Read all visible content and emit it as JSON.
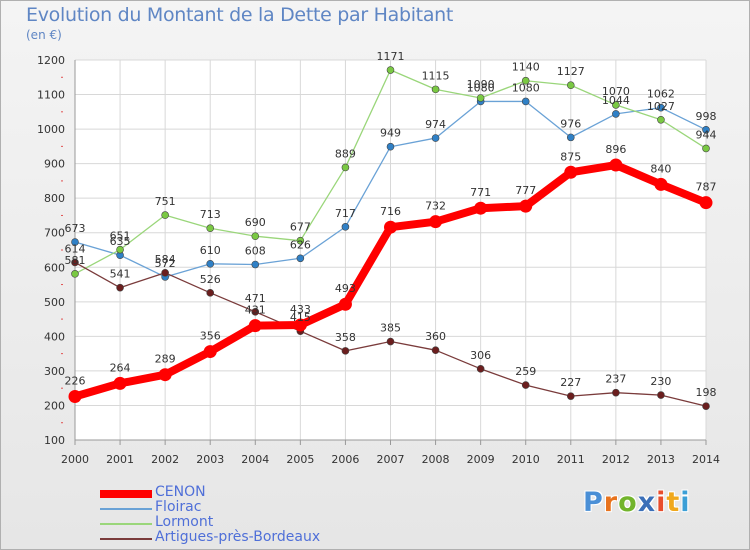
{
  "title": "Evolution du Montant de la Dette par Habitant",
  "unit_label": "(en €)",
  "logo": {
    "letters": [
      "P",
      "r",
      "o",
      "x",
      "i",
      "t",
      "i"
    ],
    "colors": [
      "#4a8fd6",
      "#e8731d",
      "#72b42c",
      "#3b6fb8",
      "#e84d2c",
      "#f0a81c",
      "#3b9fd6"
    ]
  },
  "chart_data": {
    "type": "line",
    "x": [
      "2000",
      "2001",
      "2002",
      "2003",
      "2004",
      "2005",
      "2006",
      "2007",
      "2008",
      "2009",
      "2010",
      "2011",
      "2012",
      "2013",
      "2014"
    ],
    "y_ticks": [
      "100",
      "200",
      "300",
      "400",
      "500",
      "600",
      "700",
      "800",
      "900",
      "1000",
      "1100",
      "1200"
    ],
    "ylim": [
      100,
      1200
    ],
    "grid": true,
    "legend_position": "bottom-left",
    "series": [
      {
        "name": "CENON",
        "color": "#ff0000",
        "marker_color": "#ff0000",
        "emphasis": true,
        "values": [
          226,
          264,
          289,
          356,
          431,
          433,
          493,
          716,
          732,
          771,
          777,
          875,
          896,
          840,
          787
        ],
        "labels": [
          "226",
          "264",
          "289",
          "356",
          "431",
          "433",
          "493",
          "716",
          "732",
          "771",
          "777",
          "875",
          "896",
          "840",
          "787"
        ]
      },
      {
        "name": "Floirac",
        "color": "#6aa2d6",
        "marker_color": "#2f80c6",
        "emphasis": false,
        "values": [
          673,
          635,
          572,
          610,
          608,
          626,
          717,
          949,
          974,
          1080,
          1080,
          976,
          1044,
          1062,
          998
        ],
        "labels": [
          "673",
          "635",
          "572",
          "610",
          "608",
          "626",
          "717",
          "949",
          "974",
          "1080",
          "1080",
          "976",
          "1044",
          "1062",
          "998"
        ]
      },
      {
        "name": "Lormont",
        "color": "#9ad67a",
        "marker_color": "#7ac943",
        "emphasis": false,
        "values": [
          581,
          651,
          751,
          713,
          690,
          677,
          889,
          1171,
          1115,
          1090,
          1140,
          1127,
          1070,
          1027,
          944
        ],
        "labels": [
          "581",
          "651",
          "751",
          "713",
          "690",
          "677",
          "889",
          "1171",
          "1115",
          "1090",
          "1140",
          "1127",
          "1070",
          "1027",
          "944"
        ]
      },
      {
        "name": "Artigues-près-Bordeaux",
        "color": "#7a3b3b",
        "marker_color": "#6b1e1e",
        "emphasis": false,
        "values": [
          614,
          541,
          584,
          526,
          471,
          415,
          358,
          385,
          360,
          306,
          259,
          227,
          237,
          230,
          198
        ],
        "labels": [
          "614",
          "541",
          "584",
          "526",
          "471",
          "415",
          "358",
          "385",
          "360",
          "306",
          "259",
          "227",
          "237",
          "230",
          "198"
        ]
      }
    ]
  }
}
